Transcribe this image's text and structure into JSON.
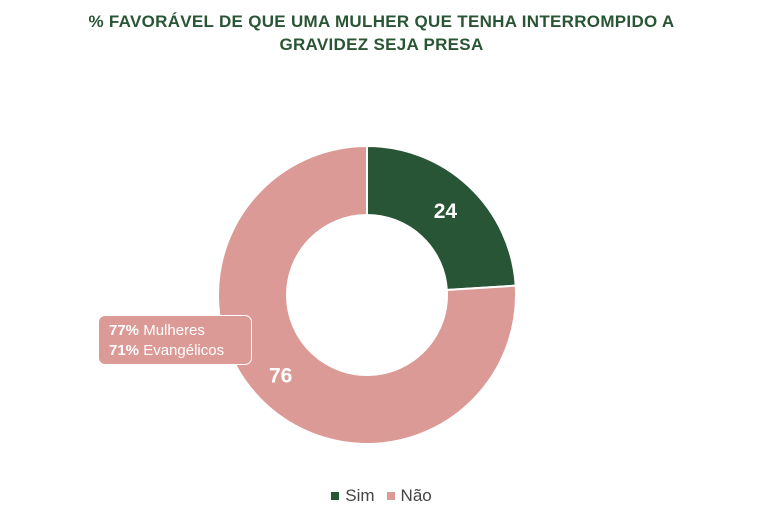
{
  "colors": {
    "title": "#2a5535",
    "sim": "#285535",
    "nao": "#dc9a96",
    "label": "#ffffff",
    "legend_text": "#444444"
  },
  "chart_data": {
    "type": "pie",
    "variant": "donut",
    "title_lines": [
      "% FAVORÁVEL DE QUE UMA MULHER QUE TENHA INTERROMPIDO A",
      "GRAVIDEZ SEJA PRESA"
    ],
    "slices": [
      {
        "name": "Sim",
        "value": 24,
        "label": "24",
        "color": "#285535"
      },
      {
        "name": "Não",
        "value": 76,
        "label": "76",
        "color": "#dc9a96"
      }
    ],
    "legend_position": "bottom",
    "annotation": {
      "slice": "Não",
      "rows": [
        {
          "value": "77%",
          "text": "Mulheres"
        },
        {
          "value": "71%",
          "text": "Evangélicos"
        }
      ]
    }
  }
}
